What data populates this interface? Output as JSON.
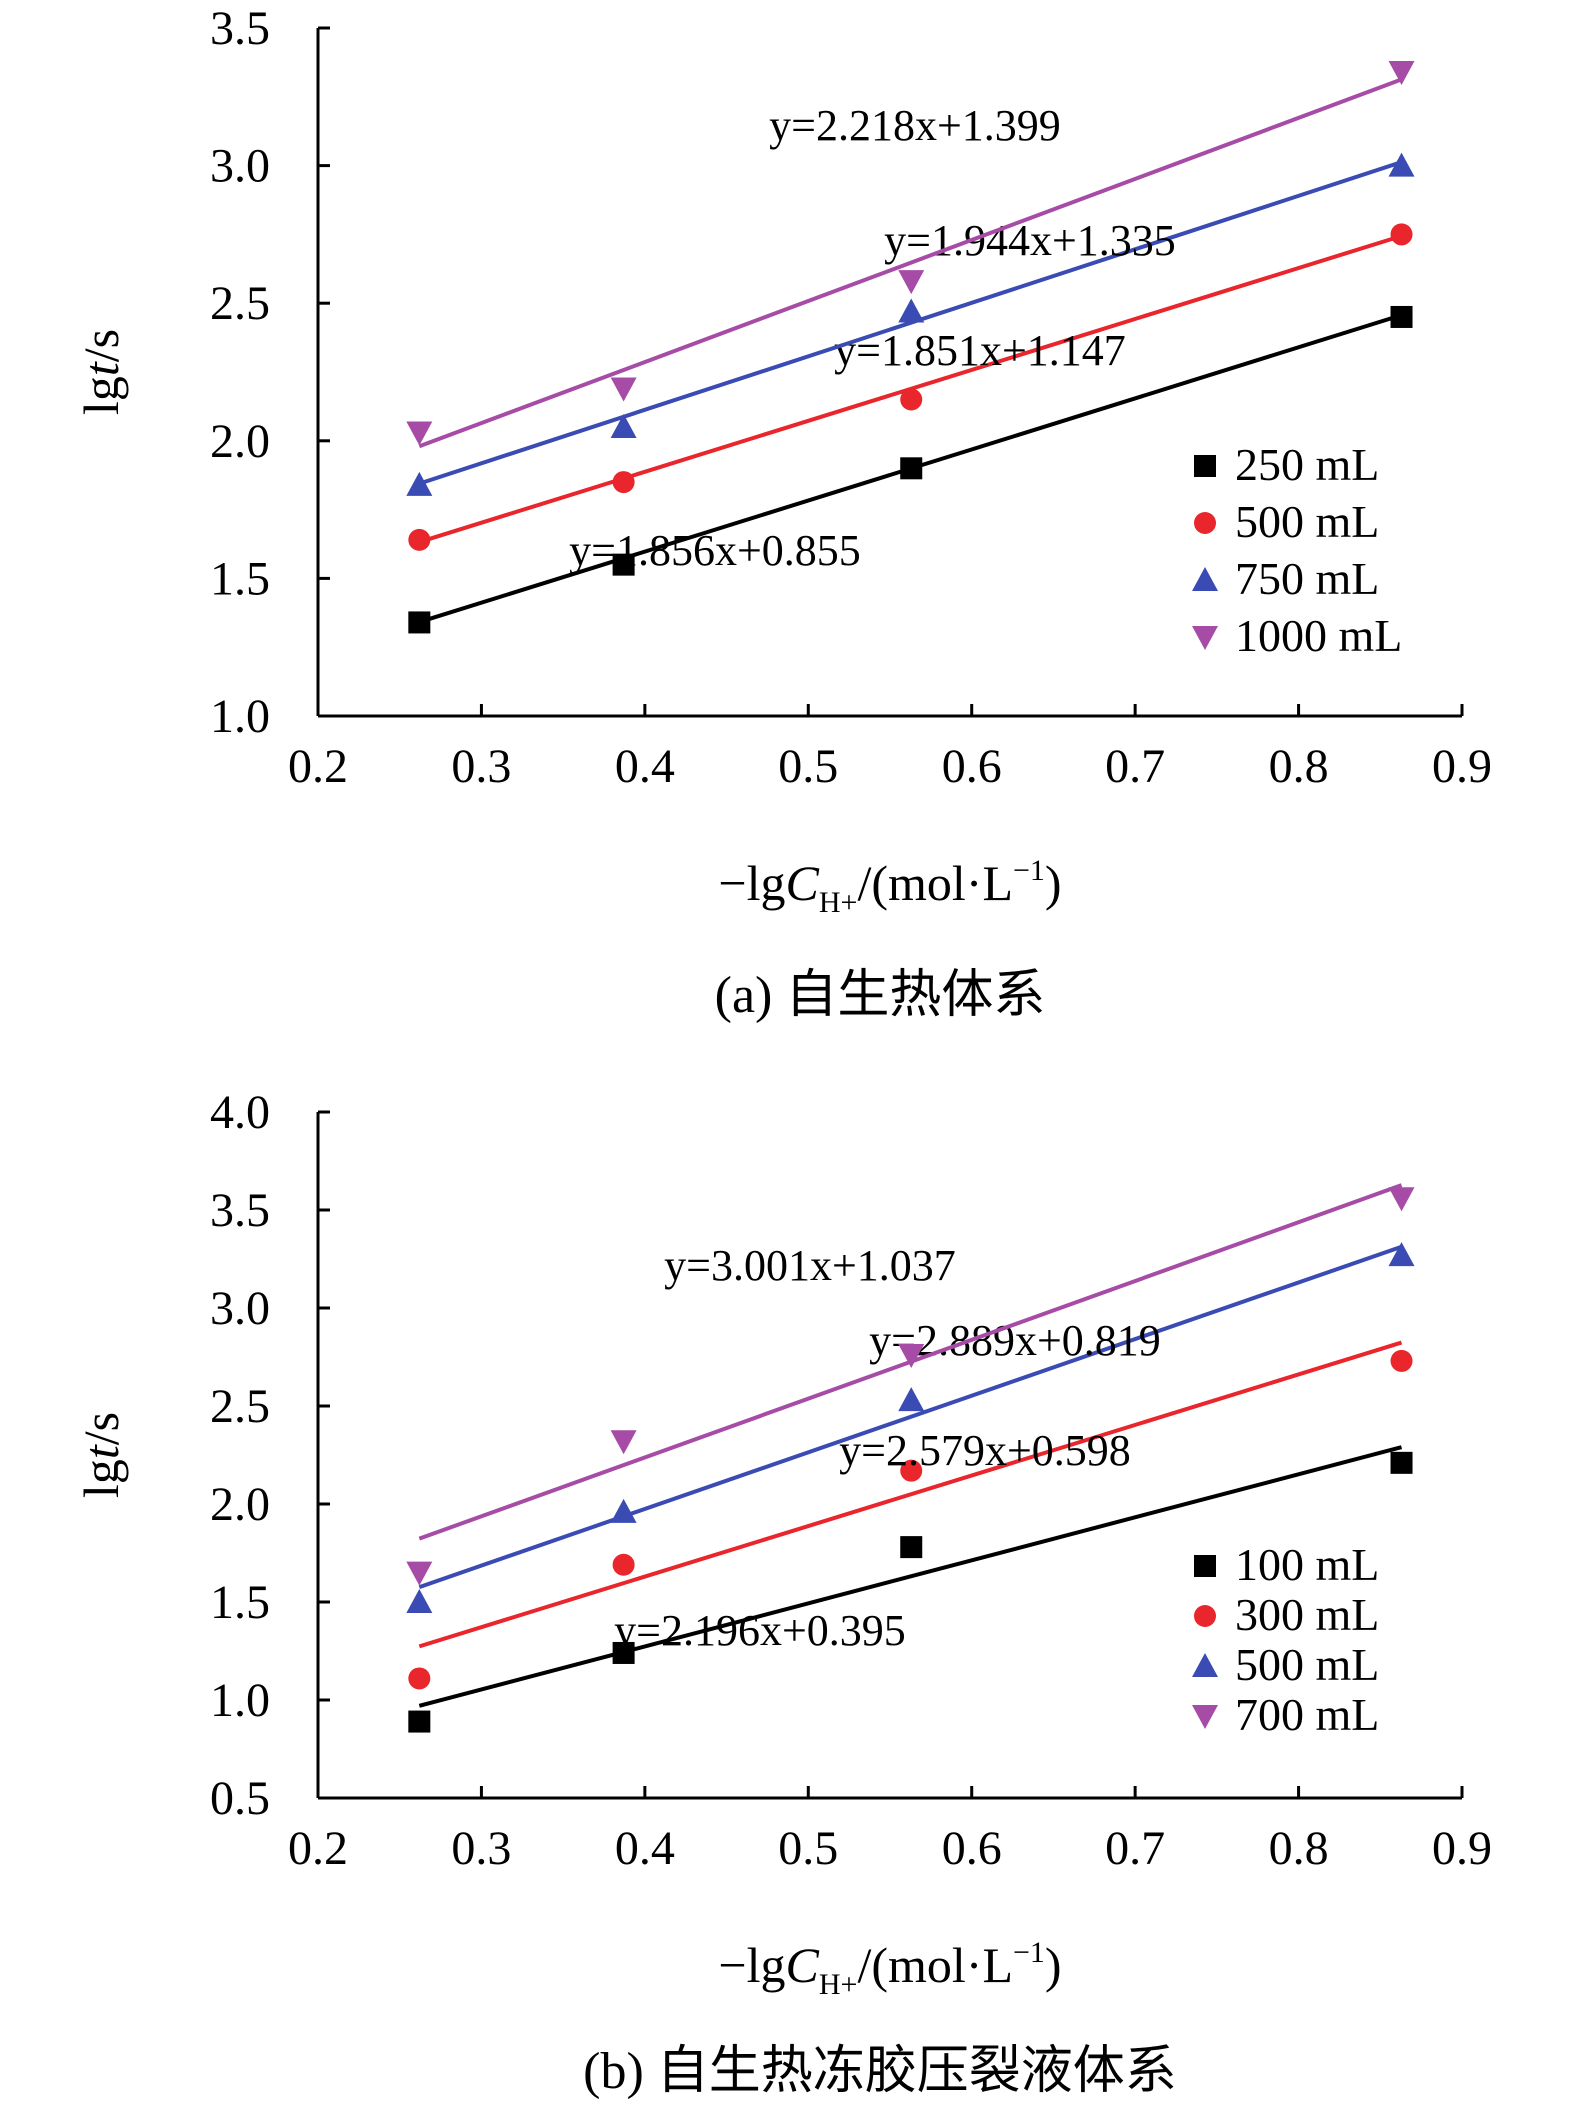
{
  "chart_data": [
    {
      "type": "scatter",
      "panel": "a",
      "caption": "(a) 自生热体系",
      "xlabel": "−lgC_H+/(mol·L−1)",
      "ylabel": "lgt/s",
      "xlim": [
        0.2,
        0.9
      ],
      "ylim": [
        1.0,
        3.5
      ],
      "xticks": [
        "0.2",
        "0.3",
        "0.4",
        "0.5",
        "0.6",
        "0.7",
        "0.8",
        "0.9"
      ],
      "yticks": [
        "1.0",
        "1.5",
        "2.0",
        "2.5",
        "3.0",
        "3.5"
      ],
      "x": [
        0.262,
        0.387,
        0.563,
        0.863
      ],
      "legend_position": "right",
      "series": [
        {
          "name": "250 mL",
          "marker": "square",
          "color": "#000000",
          "values": [
            1.34,
            1.55,
            1.9,
            2.45
          ],
          "fit": {
            "slope": 1.856,
            "intercept": 0.855,
            "label": "y=1.856x+0.855"
          }
        },
        {
          "name": "500 mL",
          "marker": "circle",
          "color": "#e8262b",
          "values": [
            1.64,
            1.85,
            2.15,
            2.75
          ],
          "fit": {
            "slope": 1.851,
            "intercept": 1.147,
            "label": "y=1.851x+1.147"
          }
        },
        {
          "name": "750 mL",
          "marker": "triangle-up",
          "color": "#3a4cb4",
          "values": [
            1.84,
            2.05,
            2.47,
            3.0
          ],
          "fit": {
            "slope": 1.944,
            "intercept": 1.335,
            "label": "y=1.944x+1.335"
          }
        },
        {
          "name": "1000 mL",
          "marker": "triangle-down",
          "color": "#a64ca6",
          "values": [
            2.03,
            2.19,
            2.58,
            3.34
          ],
          "fit": {
            "slope": 2.218,
            "intercept": 1.399,
            "label": "y=2.218x+1.399"
          }
        }
      ]
    },
    {
      "type": "scatter",
      "panel": "b",
      "caption": "(b) 自生热冻胶压裂液体系",
      "xlabel": "−lgC_H+/(mol·L−1)",
      "ylabel": "lgt/s",
      "xlim": [
        0.2,
        0.9
      ],
      "ylim": [
        0.5,
        4.0
      ],
      "xticks": [
        "0.2",
        "0.3",
        "0.4",
        "0.5",
        "0.6",
        "0.7",
        "0.8",
        "0.9"
      ],
      "yticks": [
        "0.5",
        "1.0",
        "1.5",
        "2.0",
        "2.5",
        "3.0",
        "3.5",
        "4.0"
      ],
      "x": [
        0.262,
        0.387,
        0.563,
        0.863
      ],
      "legend_position": "right",
      "series": [
        {
          "name": "100 mL",
          "marker": "square",
          "color": "#000000",
          "values": [
            0.89,
            1.24,
            1.78,
            2.21
          ],
          "fit": {
            "slope": 2.196,
            "intercept": 0.395,
            "label": "y=2.196x+0.395"
          }
        },
        {
          "name": "300 mL",
          "marker": "circle",
          "color": "#e8262b",
          "values": [
            1.11,
            1.69,
            2.17,
            2.73
          ],
          "fit": {
            "slope": 2.579,
            "intercept": 0.598,
            "label": "y=2.579x+0.598"
          }
        },
        {
          "name": "500 mL",
          "marker": "triangle-up",
          "color": "#3a4cb4",
          "values": [
            1.5,
            1.96,
            2.53,
            3.27
          ],
          "fit": {
            "slope": 2.889,
            "intercept": 0.819,
            "label": "y=2.889x+0.819"
          }
        },
        {
          "name": "700 mL",
          "marker": "triangle-down",
          "color": "#a64ca6",
          "values": [
            1.65,
            2.32,
            2.76,
            3.56
          ],
          "fit": {
            "slope": 3.001,
            "intercept": 1.037,
            "label": "y=3.001x+1.037"
          }
        }
      ]
    }
  ]
}
